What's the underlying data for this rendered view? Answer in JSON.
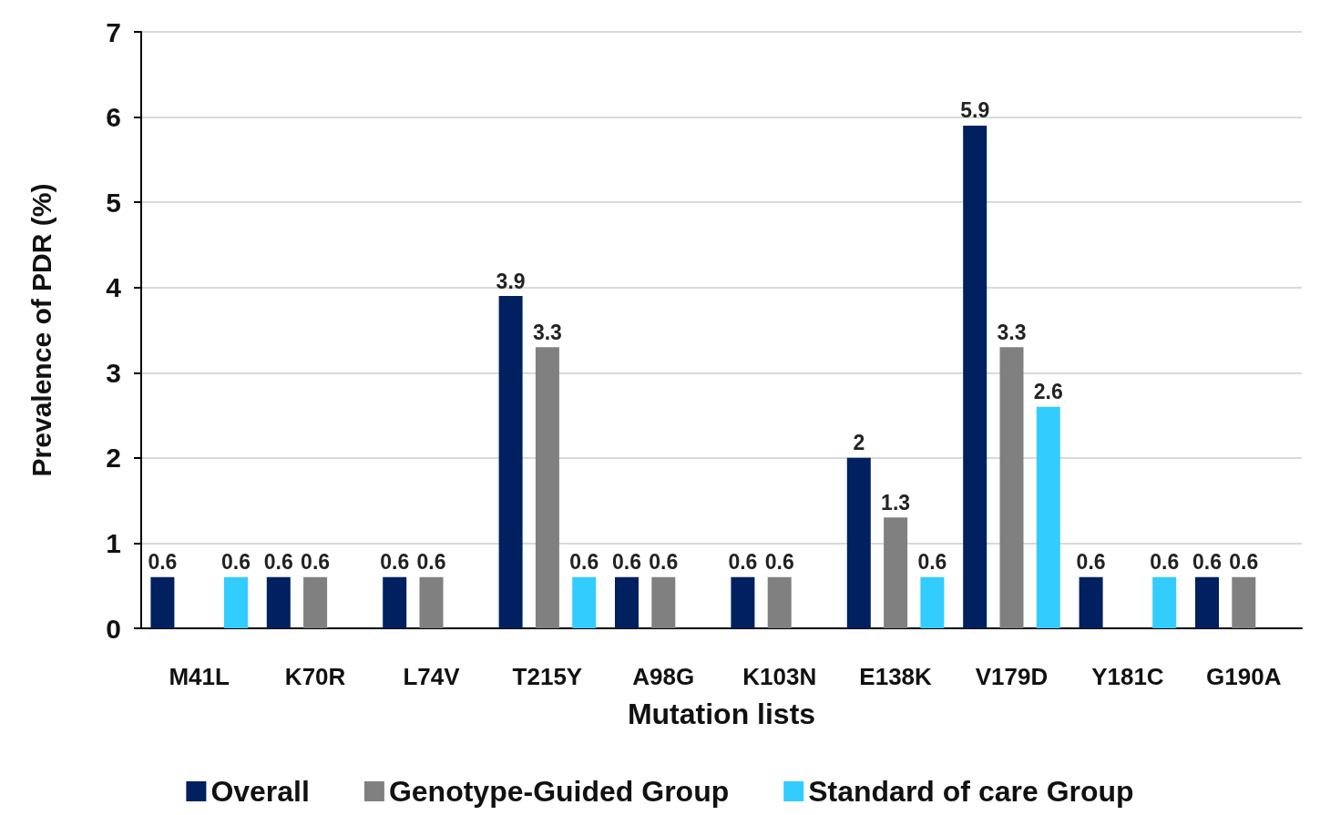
{
  "chart_data": {
    "type": "bar",
    "xlabel": "Mutation lists",
    "ylabel": "Prevalence of PDR (%)",
    "categories": [
      "M41L",
      "K70R",
      "L74V",
      "T215Y",
      "A98G",
      "K103N",
      "E138K",
      "V179D",
      "Y181C",
      "G190A"
    ],
    "series": [
      {
        "name": "Overall",
        "color": "#002060",
        "values": [
          0.6,
          0.6,
          0.6,
          3.9,
          0.6,
          0.6,
          2,
          5.9,
          0.6,
          0.6
        ]
      },
      {
        "name": "Genotype-Guided Group",
        "color": "#808080",
        "values": [
          null,
          0.6,
          0.6,
          3.3,
          0.6,
          0.6,
          1.3,
          3.3,
          null,
          0.6
        ]
      },
      {
        "name": "Standard of care Group",
        "color": "#33ccff",
        "values": [
          0.6,
          null,
          null,
          0.6,
          null,
          null,
          0.6,
          2.6,
          0.6,
          null
        ]
      }
    ],
    "ylim": [
      0,
      7
    ],
    "yticks": [
      0,
      1,
      2,
      3,
      4,
      5,
      6,
      7
    ],
    "grid": "y",
    "legend": "bottom",
    "data_labels": true
  }
}
